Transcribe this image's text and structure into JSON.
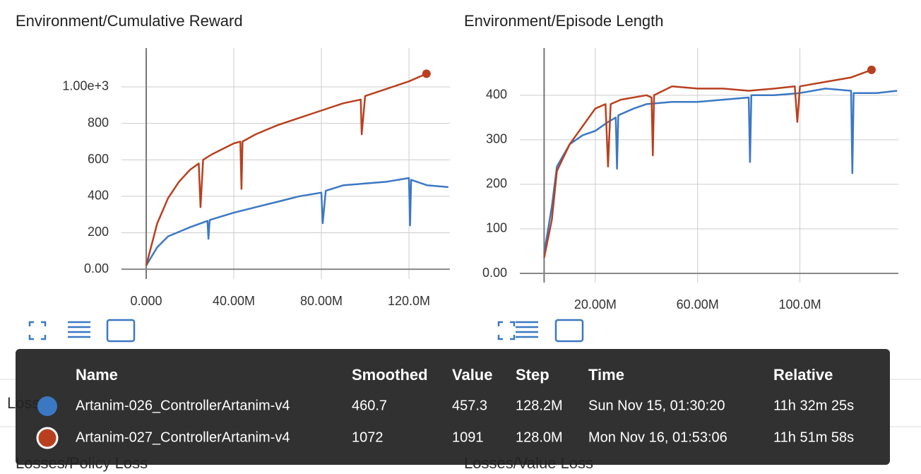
{
  "chart_data": [
    {
      "type": "line",
      "title": "Environment/Cumulative Reward",
      "xlim": [
        -11300000,
        138700000
      ],
      "ylim": [
        -54,
        1213
      ],
      "xticks": [
        {
          "value": 0,
          "label": "0.000"
        },
        {
          "value": 40000000,
          "label": "40.00M"
        },
        {
          "value": 80000000,
          "label": "80.00M"
        },
        {
          "value": 120000000,
          "label": "120.0M"
        }
      ],
      "yticks": [
        {
          "value": 0,
          "label": "0.00"
        },
        200,
        400,
        600,
        800,
        {
          "value": 1000,
          "label": "1.00e+3"
        }
      ],
      "grid": true,
      "series": [
        {
          "name": "Artanim-026_ControllerArtanim-v4",
          "color": "#3b78c3",
          "x": [
            0,
            5000000,
            10000000,
            20000000,
            28000000,
            28400000,
            29000000,
            40000000,
            50000000,
            60000000,
            70000000,
            80000000,
            80600000,
            82000000,
            90000000,
            100000000,
            110000000,
            120000000,
            120500000,
            121000000,
            128200000,
            138000000
          ],
          "values": [
            20,
            120,
            180,
            230,
            265,
            167,
            270,
            310,
            340,
            370,
            400,
            420,
            252,
            430,
            460,
            470,
            480,
            500,
            240,
            490,
            460.7,
            450
          ]
        },
        {
          "name": "Artanim-027_ControllerArtanim-v4",
          "color": "#b8401f",
          "x": [
            0,
            5000000,
            10000000,
            15000000,
            20000000,
            24000000,
            24800000,
            26000000,
            30000000,
            35000000,
            40000000,
            43000000,
            43500000,
            44000000,
            50000000,
            60000000,
            70000000,
            80000000,
            90000000,
            98000000,
            98400000,
            100000000,
            110000000,
            120000000,
            128000000
          ],
          "values": [
            20,
            250,
            390,
            480,
            545,
            580,
            340,
            600,
            630,
            660,
            690,
            700,
            440,
            700,
            740,
            790,
            830,
            870,
            910,
            930,
            740,
            950,
            990,
            1030,
            1072
          ]
        }
      ]
    },
    {
      "type": "line",
      "title": "Environment/Episode Length",
      "xlim": [
        -9500000,
        138500000
      ],
      "ylim": [
        -20.6,
        506
      ],
      "xticks": [
        {
          "value": 20000000,
          "label": "20.00M"
        },
        {
          "value": 60000000,
          "label": "60.00M"
        },
        {
          "value": 100000000,
          "label": "100.0M"
        }
      ],
      "yticks": [
        {
          "value": 0,
          "label": "0.00"
        },
        100,
        200,
        300,
        400
      ],
      "grid": true,
      "series": [
        {
          "name": "Artanim-026_ControllerArtanim-v4",
          "color": "#3b78c3",
          "x": [
            0,
            3000000,
            5000000,
            10000000,
            15000000,
            20000000,
            25000000,
            28000000,
            28500000,
            29000000,
            35000000,
            40000000,
            50000000,
            60000000,
            70000000,
            80000000,
            80500000,
            81000000,
            90000000,
            100000000,
            110000000,
            120000000,
            120500000,
            121000000,
            130000000,
            138000000
          ],
          "values": [
            45,
            150,
            240,
            290,
            310,
            320,
            340,
            350,
            235,
            355,
            370,
            380,
            385,
            385,
            390,
            395,
            250,
            400,
            400,
            405,
            415,
            410,
            225,
            405,
            405,
            410
          ]
        },
        {
          "name": "Artanim-027_ControllerArtanim-v4",
          "color": "#b8401f",
          "x": [
            0,
            3000000,
            5000000,
            10000000,
            15000000,
            20000000,
            24000000,
            25000000,
            26000000,
            30000000,
            40000000,
            42000000,
            42500000,
            43000000,
            50000000,
            60000000,
            70000000,
            80000000,
            90000000,
            98000000,
            99000000,
            100000000,
            110000000,
            120000000,
            128000000
          ],
          "values": [
            35,
            120,
            230,
            290,
            330,
            370,
            380,
            240,
            380,
            390,
            400,
            395,
            265,
            400,
            420,
            415,
            415,
            410,
            415,
            420,
            340,
            420,
            430,
            440,
            457
          ]
        }
      ]
    }
  ],
  "sections": {
    "losses": "Losses",
    "policy_loss": "Losses/Policy Loss",
    "value_loss": "Losses/Value Loss"
  },
  "tooltip": {
    "header": [
      "Name",
      "Smoothed",
      "Value",
      "Step",
      "Time",
      "Relative"
    ],
    "rows": [
      [
        "Artanim-026_ControllerArtanim-v4",
        "460.7",
        "457.3",
        "128.2M",
        "Sun Nov 15, 01:30:20",
        "11h 32m 25s"
      ],
      [
        "Artanim-027_ControllerArtanim-v4",
        "1072",
        "1091",
        "128.0M",
        "Mon Nov 16, 01:53:06",
        "11h 51m 58s"
      ]
    ]
  }
}
